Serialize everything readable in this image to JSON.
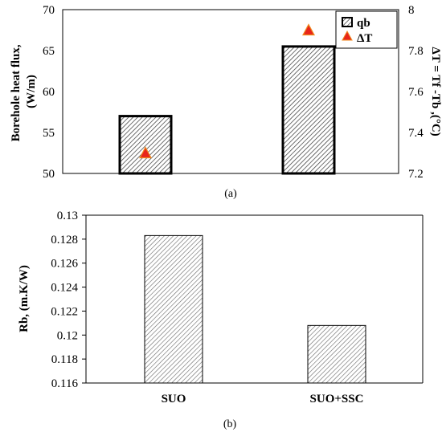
{
  "chart_data": [
    {
      "type": "bar",
      "caption": "(a)",
      "categories": [
        "SUO",
        "SUO+SSC"
      ],
      "series": [
        {
          "name": "qb",
          "axis": "left",
          "values": [
            57.0,
            65.5
          ],
          "style": "hatched bar"
        },
        {
          "name": "ΔT",
          "axis": "right",
          "values": [
            7.3,
            7.9
          ],
          "style": "red triangle marker"
        }
      ],
      "ylabel_lines": [
        "Borehole heat flux,",
        "(W/m)"
      ],
      "ylabel_right": "ΔT = Tf -Tb ,(°C)",
      "ylim": [
        50,
        70
      ],
      "yticks": [
        "50",
        "55",
        "60",
        "65",
        "70"
      ],
      "ylim_right": [
        7.2,
        8.0
      ],
      "yticks_right": [
        "7.2",
        "7.4",
        "7.6",
        "7.8",
        "8"
      ],
      "legend_position": "top-right",
      "colors": {
        "bar_fill": "#ffffff",
        "hatch": "#333333",
        "marker": "#e8251a",
        "marker_inner": "#f08a1e"
      }
    },
    {
      "type": "bar",
      "caption": "(b)",
      "categories": [
        "SUO",
        "SUO+SSC"
      ],
      "series": [
        {
          "name": "Rb",
          "values": [
            0.1283,
            0.1208
          ]
        }
      ],
      "ylabel": "Rb, (m.K/W)",
      "ylim": [
        0.116,
        0.13
      ],
      "yticks": [
        "0.116",
        "0.118",
        "0.12",
        "0.122",
        "0.124",
        "0.126",
        "0.128",
        "0.13"
      ],
      "colors": {
        "bar_fill": "#ffffff",
        "hatch": "#666666"
      }
    }
  ]
}
